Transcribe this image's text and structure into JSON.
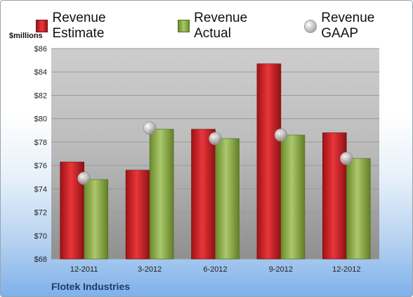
{
  "chart_data": {
    "type": "bar",
    "ylabel": "$millions",
    "ylim": [
      68,
      86
    ],
    "yticks": [
      "$68",
      "$70",
      "$72",
      "$74",
      "$76",
      "$78",
      "$80",
      "$82",
      "$84",
      "$86"
    ],
    "categories": [
      "12-2011",
      "3-2012",
      "6-2012",
      "9-2012",
      "12-2012"
    ],
    "series": [
      {
        "name": "Revenue Estimate",
        "kind": "bar",
        "color": "#d42a2e",
        "values": [
          76.3,
          75.6,
          79.1,
          84.7,
          78.8
        ]
      },
      {
        "name": "Revenue Actual",
        "kind": "bar",
        "color": "#8fae4c",
        "values": [
          74.8,
          79.1,
          78.3,
          78.6,
          76.6
        ]
      },
      {
        "name": "Revenue GAAP",
        "kind": "marker",
        "color": "#b8b8b8",
        "values": [
          74.9,
          79.2,
          78.3,
          78.6,
          76.6
        ]
      }
    ],
    "grid": true,
    "legend": "top"
  },
  "footer": {
    "company": "Flotek Industries"
  }
}
